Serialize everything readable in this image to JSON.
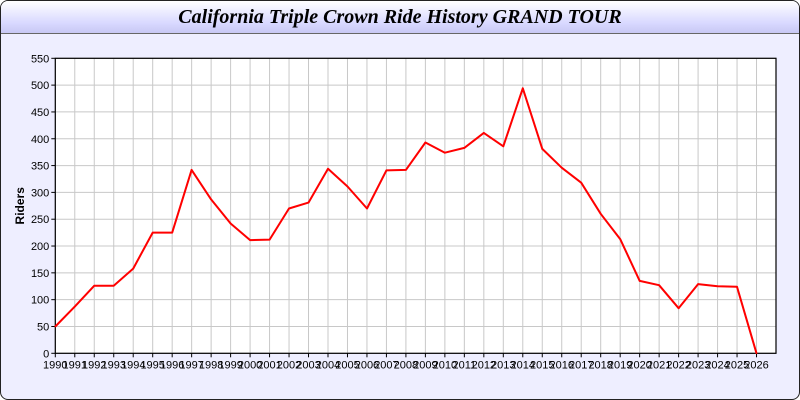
{
  "chart_data": {
    "type": "line",
    "title": "California Triple Crown Ride History GRAND TOUR",
    "xlabel": "",
    "ylabel": "Riders",
    "xlim": [
      1990,
      2027
    ],
    "ylim": [
      0,
      550
    ],
    "yticks": [
      0,
      50,
      100,
      150,
      200,
      250,
      300,
      350,
      400,
      450,
      500,
      550
    ],
    "grid": true,
    "line_color": "#ff0000",
    "x": [
      1990,
      1991,
      1992,
      1993,
      1994,
      1995,
      1996,
      1997,
      1998,
      1999,
      2000,
      2001,
      2002,
      2003,
      2004,
      2005,
      2006,
      2007,
      2008,
      2009,
      2010,
      2011,
      2012,
      2013,
      2014,
      2015,
      2016,
      2017,
      2018,
      2019,
      2020,
      2021,
      2022,
      2023,
      2024,
      2025,
      2026
    ],
    "series": [
      {
        "values": [
          50,
          87,
          126,
          126,
          158,
          225,
          225,
          342,
          287,
          242,
          211,
          212,
          270,
          281,
          344,
          311,
          270,
          341,
          342,
          393,
          374,
          383,
          411,
          386,
          494,
          381,
          346,
          318,
          260,
          213,
          135,
          127,
          84,
          129,
          125,
          124,
          0
        ]
      }
    ]
  }
}
